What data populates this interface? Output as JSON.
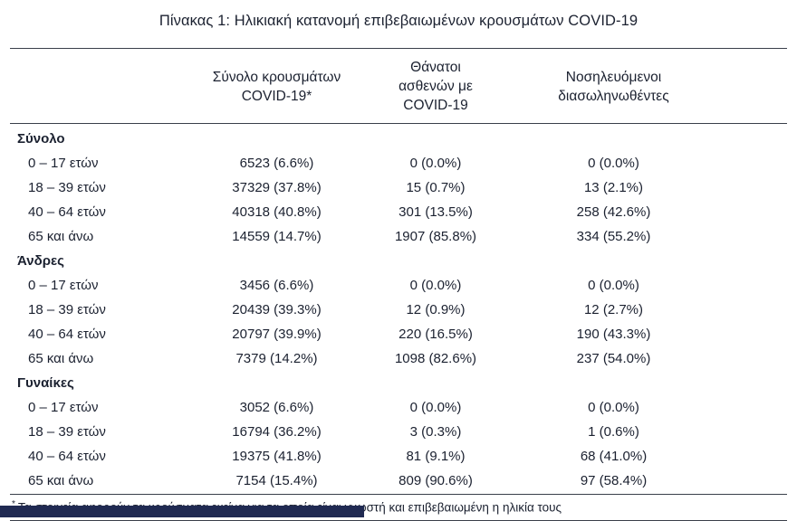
{
  "title": "Πίνακας 1: Ηλικιακή κατανομή επιβεβαιωμένων κρουσμάτων COVID-19",
  "table": {
    "columns": [
      {
        "lines": [
          "Σύνολο κρουσμάτων",
          "COVID-19*"
        ]
      },
      {
        "lines": [
          "Θάνατοι ασθενών με",
          "COVID-19"
        ]
      },
      {
        "lines": [
          "Νοσηλευόμενοι",
          "διασωληνωθέντες"
        ]
      }
    ],
    "sections": [
      {
        "label": "Σύνολο",
        "rows": [
          {
            "label": "0 – 17 ετών",
            "cells": [
              "6523 (6.6%)",
              "0 (0.0%)",
              "0 (0.0%)"
            ]
          },
          {
            "label": "18 – 39 ετών",
            "cells": [
              "37329 (37.8%)",
              "15 (0.7%)",
              "13 (2.1%)"
            ]
          },
          {
            "label": "40 – 64 ετών",
            "cells": [
              "40318 (40.8%)",
              "301 (13.5%)",
              "258 (42.6%)"
            ]
          },
          {
            "label": "65 και άνω",
            "cells": [
              "14559 (14.7%)",
              "1907 (85.8%)",
              "334 (55.2%)"
            ]
          }
        ]
      },
      {
        "label": "Άνδρες",
        "rows": [
          {
            "label": "0 – 17 ετών",
            "cells": [
              "3456 (6.6%)",
              "0 (0.0%)",
              "0 (0.0%)"
            ]
          },
          {
            "label": "18 – 39 ετών",
            "cells": [
              "20439 (39.3%)",
              "12 (0.9%)",
              "12 (2.7%)"
            ]
          },
          {
            "label": "40 – 64 ετών",
            "cells": [
              "20797 (39.9%)",
              "220 (16.5%)",
              "190 (43.3%)"
            ]
          },
          {
            "label": "65 και άνω",
            "cells": [
              "7379 (14.2%)",
              "1098 (82.6%)",
              "237 (54.0%)"
            ]
          }
        ]
      },
      {
        "label": "Γυναίκες",
        "rows": [
          {
            "label": "0 – 17 ετών",
            "cells": [
              "3052 (6.6%)",
              "0 (0.0%)",
              "0 (0.0%)"
            ]
          },
          {
            "label": "18 – 39 ετών",
            "cells": [
              "16794 (36.2%)",
              "3 (0.3%)",
              "1 (0.6%)"
            ]
          },
          {
            "label": "40 – 64 ετών",
            "cells": [
              "19375 (41.8%)",
              "81 (9.1%)",
              "68 (41.0%)"
            ]
          },
          {
            "label": "65 και άνω",
            "cells": [
              "7154 (15.4%)",
              "809 (90.6%)",
              "97 (58.4%)"
            ]
          }
        ]
      }
    ],
    "footnote_marker": "*",
    "footnote": "Τα στοιχεία αφορούν τα κρούσματα εκείνα για τα οποία είναι γνωστή και επιβεβαιωμένη η ηλικία τους"
  },
  "colors": {
    "text": "#1b2130",
    "rule": "#3a3f4a",
    "footer_bar": "#202a52"
  }
}
